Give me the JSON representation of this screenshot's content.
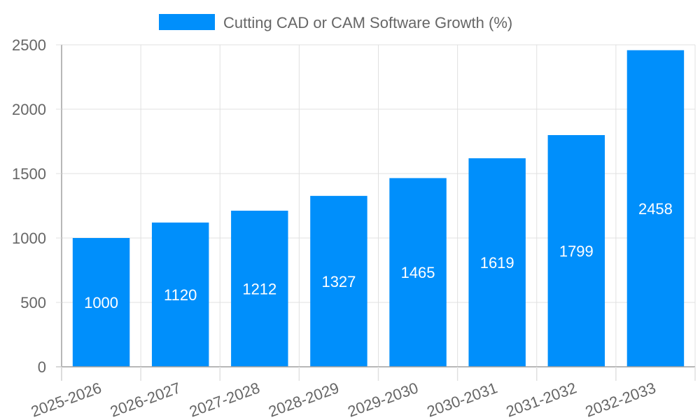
{
  "chart_data": {
    "type": "bar",
    "title": "",
    "xlabel": "",
    "ylabel": "",
    "categories": [
      "2025-2026",
      "2026-2027",
      "2027-2028",
      "2028-2029",
      "2029-2030",
      "2030-2031",
      "2031-2032",
      "2032-2033"
    ],
    "series": [
      {
        "name": "Cutting CAD or CAM Software Growth (%)",
        "values": [
          1000,
          1120,
          1212,
          1327,
          1465,
          1619,
          1799,
          2458
        ],
        "color": "#008FFB"
      }
    ],
    "ylim": [
      0,
      2500
    ],
    "yticks": [
      0,
      500,
      1000,
      1500,
      2000,
      2500
    ],
    "grid": true,
    "legend_position": "top-center",
    "data_labels": true,
    "x_tick_rotation_deg": -20
  },
  "legend": {
    "label": "Cutting CAD or CAM Software Growth (%)",
    "color": "#008FFB"
  }
}
